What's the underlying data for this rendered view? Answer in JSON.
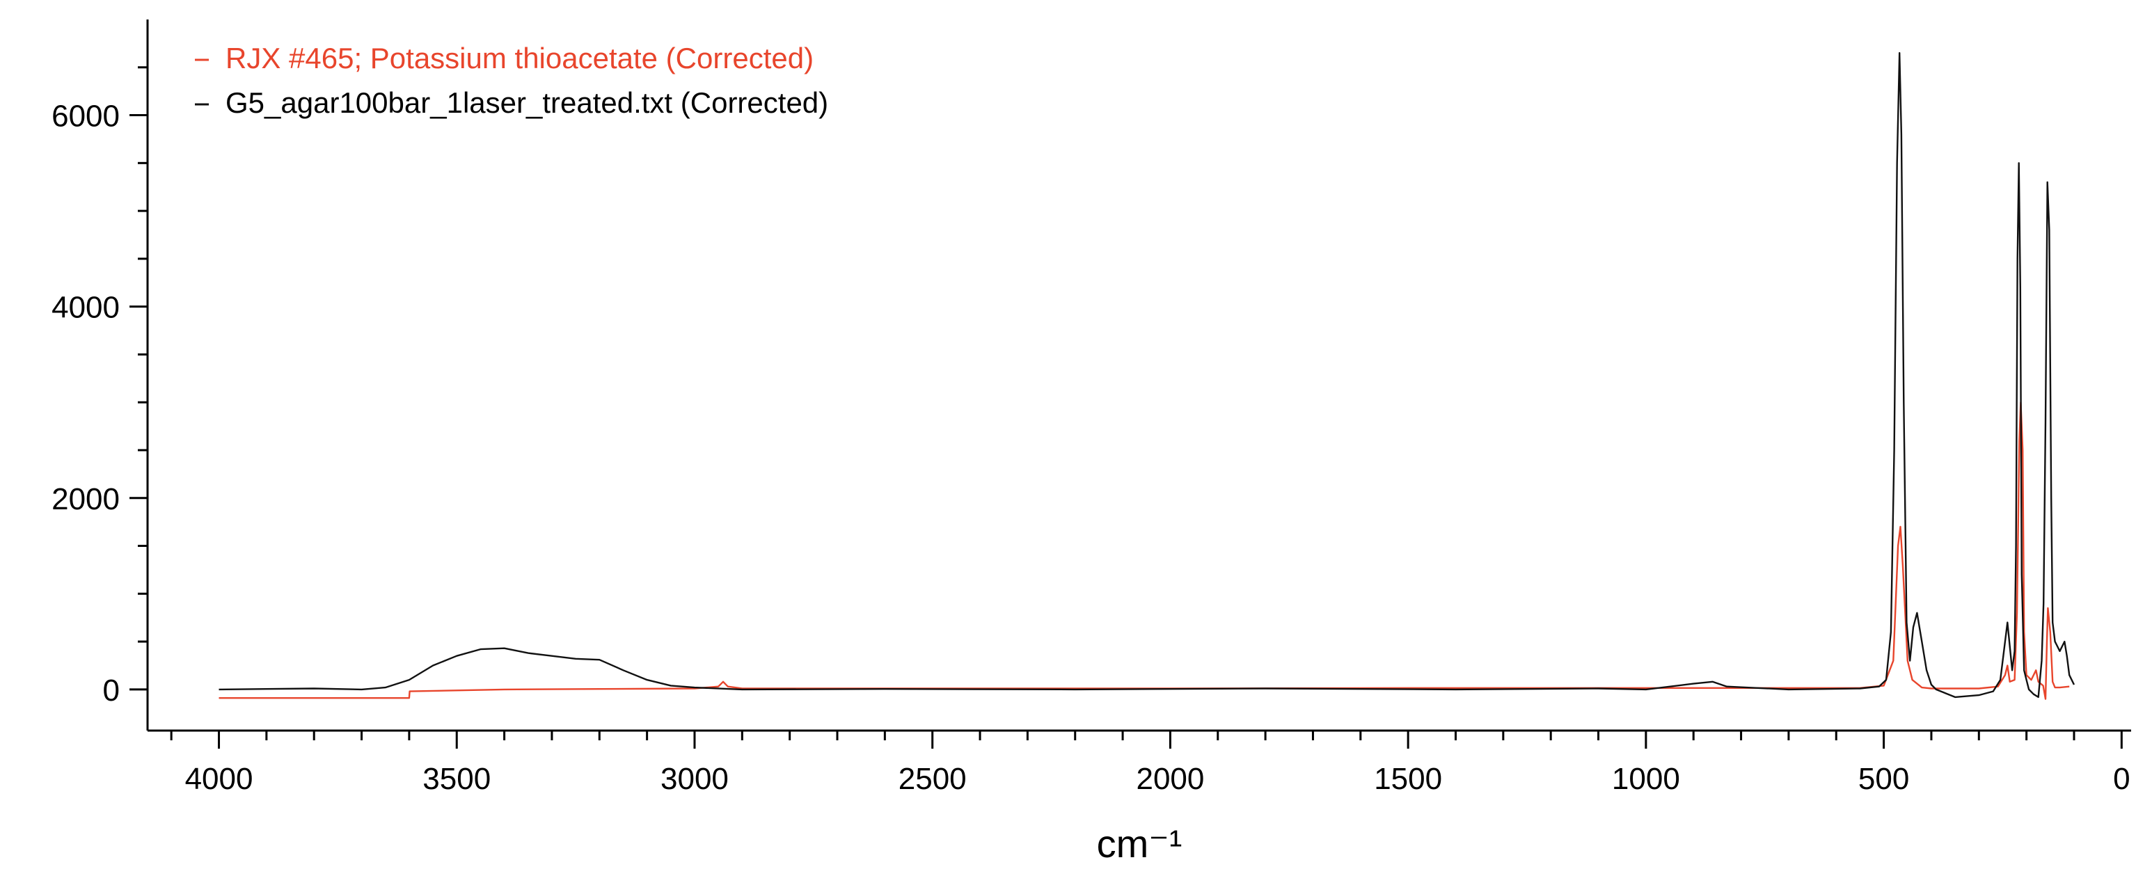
{
  "chart_data": {
    "type": "line",
    "title": "",
    "xlabel": "cm⁻¹",
    "ylabel": "",
    "xlim": [
      4150,
      -20
    ],
    "ylim": [
      -430,
      7000
    ],
    "x_reversed": true,
    "grid": false,
    "legend_position": "top-left",
    "x_ticks": [
      4000,
      3500,
      3000,
      2500,
      2000,
      1500,
      1000,
      500,
      0
    ],
    "x_tick_labels": [
      "4000",
      "3500",
      "3000",
      "2500",
      "2000",
      "1500",
      "1000",
      "500",
      "0"
    ],
    "y_ticks": [
      0,
      2000,
      4000,
      6000
    ],
    "y_tick_labels": [
      "0",
      "2000",
      "4000",
      "6000"
    ],
    "series": [
      {
        "name": "RJX #465; Potassium thioacetate (Corrected)",
        "color": "#e8452c",
        "x": [
          4000,
          3600,
          3599,
          3400,
          3200,
          3000,
          2950,
          2940,
          2930,
          2900,
          2500,
          2000,
          1500,
          1000,
          700,
          550,
          500,
          480,
          470,
          465,
          460,
          450,
          440,
          420,
          400,
          300,
          260,
          245,
          240,
          235,
          225,
          220,
          215,
          212,
          208,
          205,
          200,
          190,
          180,
          175,
          170,
          165,
          160,
          157,
          155,
          150,
          145,
          140,
          130,
          110
        ],
        "values": [
          -90,
          -90,
          -20,
          0,
          5,
          10,
          30,
          80,
          30,
          10,
          10,
          10,
          15,
          15,
          15,
          15,
          40,
          300,
          1500,
          1700,
          1300,
          300,
          100,
          20,
          10,
          10,
          30,
          150,
          250,
          80,
          100,
          800,
          2600,
          3000,
          2500,
          600,
          150,
          100,
          200,
          80,
          60,
          40,
          -100,
          500,
          850,
          600,
          80,
          20,
          20,
          30
        ]
      },
      {
        "name": "G5_agar100bar_1laser_treated.txt (Corrected)",
        "color": "#111111",
        "x": [
          4000,
          3800,
          3700,
          3650,
          3600,
          3550,
          3500,
          3450,
          3400,
          3350,
          3300,
          3250,
          3200,
          3150,
          3100,
          3050,
          3000,
          2900,
          2600,
          2200,
          1800,
          1400,
          1100,
          1000,
          900,
          860,
          830,
          700,
          550,
          510,
          495,
          485,
          478,
          472,
          467,
          463,
          458,
          452,
          445,
          438,
          430,
          420,
          410,
          400,
          390,
          350,
          300,
          270,
          255,
          245,
          240,
          235,
          230,
          225,
          222,
          219,
          216,
          213,
          210,
          205,
          200,
          195,
          185,
          175,
          168,
          164,
          160,
          156,
          152,
          148,
          145,
          140,
          135,
          130,
          120,
          115,
          110,
          100
        ],
        "values": [
          0,
          10,
          0,
          20,
          100,
          250,
          350,
          420,
          430,
          380,
          350,
          320,
          310,
          200,
          100,
          40,
          20,
          0,
          5,
          0,
          10,
          0,
          10,
          0,
          60,
          80,
          30,
          0,
          10,
          30,
          100,
          600,
          2500,
          5500,
          6650,
          5800,
          3000,
          700,
          300,
          650,
          800,
          500,
          200,
          50,
          0,
          -80,
          -60,
          -20,
          100,
          500,
          700,
          450,
          200,
          400,
          1500,
          4500,
          5500,
          4200,
          1200,
          200,
          100,
          0,
          -50,
          -80,
          300,
          900,
          2800,
          5300,
          4800,
          2000,
          700,
          500,
          450,
          400,
          500,
          350,
          150,
          50
        ]
      }
    ]
  }
}
